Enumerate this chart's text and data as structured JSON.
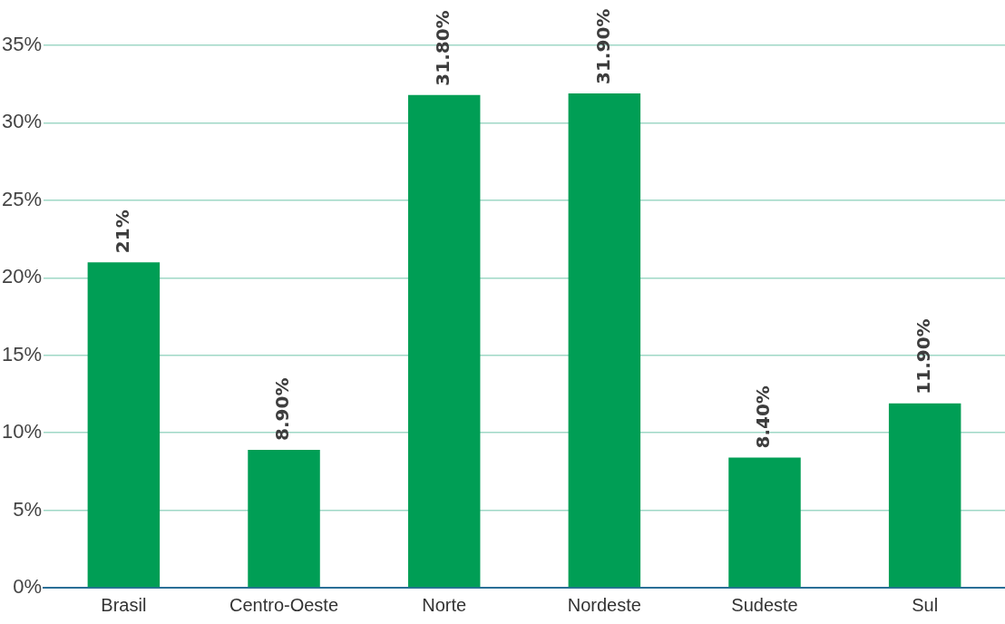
{
  "chart_data": {
    "type": "bar",
    "categories": [
      "Brasil",
      "Centro-Oeste",
      "Norte",
      "Nordeste",
      "Sudeste",
      "Sul"
    ],
    "values": [
      21,
      8.9,
      31.8,
      31.9,
      8.4,
      11.9
    ],
    "value_labels": [
      "21%",
      "8.90%",
      "31.80%",
      "31.90%",
      "8.40%",
      "11.90%"
    ],
    "color": "#009e55",
    "ylim": [
      0,
      35
    ],
    "yticks": [
      {
        "value": 0,
        "label": "0%"
      },
      {
        "value": 5,
        "label": "5%"
      },
      {
        "value": 10,
        "label": "10%"
      },
      {
        "value": 15,
        "label": "15%"
      },
      {
        "value": 20,
        "label": "20%"
      },
      {
        "value": 25,
        "label": "25%"
      },
      {
        "value": 30,
        "label": "30%"
      },
      {
        "value": 35,
        "label": "35%"
      }
    ],
    "grid": "y",
    "legend": false
  }
}
